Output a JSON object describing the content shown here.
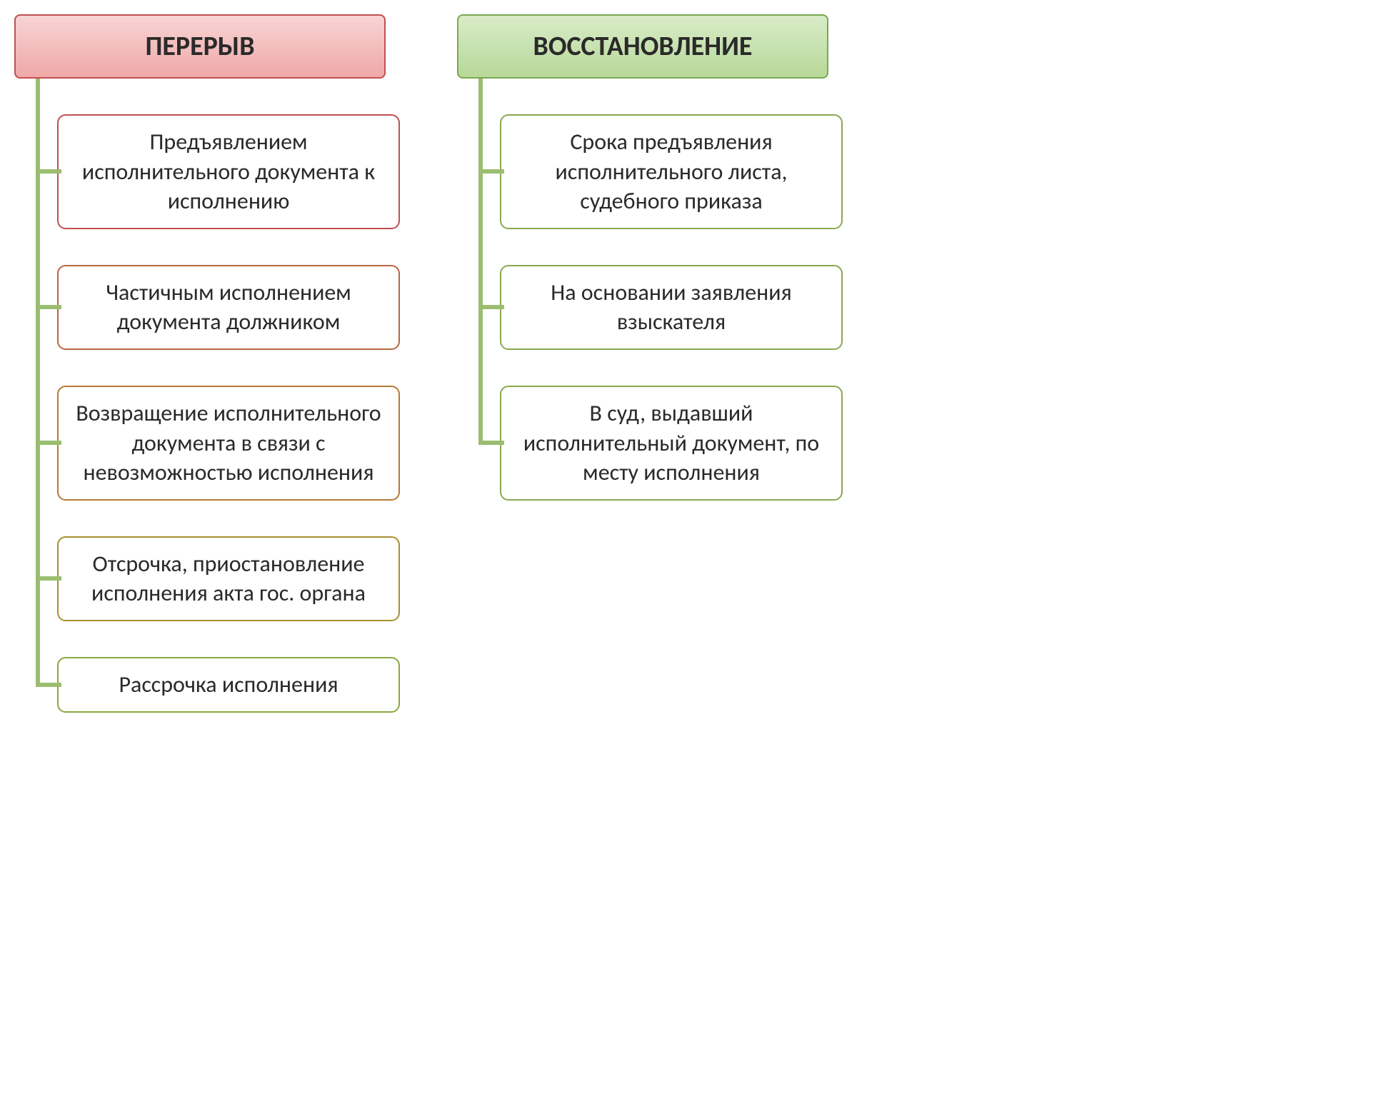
{
  "diagram": {
    "type": "tree",
    "background_color": "#ffffff",
    "connector_color": "#9abd6f",
    "connector_width": 6,
    "font_family": "Calibri",
    "header_fontsize": 38,
    "item_fontsize": 32,
    "item_border_radius": 12,
    "header_border_radius": 8,
    "columns": [
      {
        "header": {
          "label": "ПЕРЕРЫВ",
          "bg_gradient_top": "#f8d4d4",
          "bg_gradient_bottom": "#f0a8a8",
          "border_color": "#c05050"
        },
        "items": [
          {
            "label": "Предъявлением исполнительного документа к исполнению",
            "border_color": "#c05050"
          },
          {
            "label": "Частичным исполнением документа должником",
            "border_color": "#b86840"
          },
          {
            "label": "Возвращение исполнительного документа в связи с невозможностью исполнения",
            "border_color": "#b87838"
          },
          {
            "label": "Отсрочка, приостановление исполнения акта гос. органа",
            "border_color": "#a89030"
          },
          {
            "label": "Рассрочка исполнения",
            "border_color": "#8aa840"
          }
        ]
      },
      {
        "header": {
          "label": "ВОССТАНОВЛЕНИЕ",
          "bg_gradient_top": "#d8ecc8",
          "bg_gradient_bottom": "#b8d898",
          "border_color": "#7aa850"
        },
        "items": [
          {
            "label": "Срока предъявления исполнительного листа, судебного приказа",
            "border_color": "#8aa850"
          },
          {
            "label": "На основании заявления взыскателя",
            "border_color": "#8aa850"
          },
          {
            "label": "В суд, выдавший исполнительный документ, по месту исполнения",
            "border_color": "#8aa850"
          }
        ]
      }
    ]
  }
}
